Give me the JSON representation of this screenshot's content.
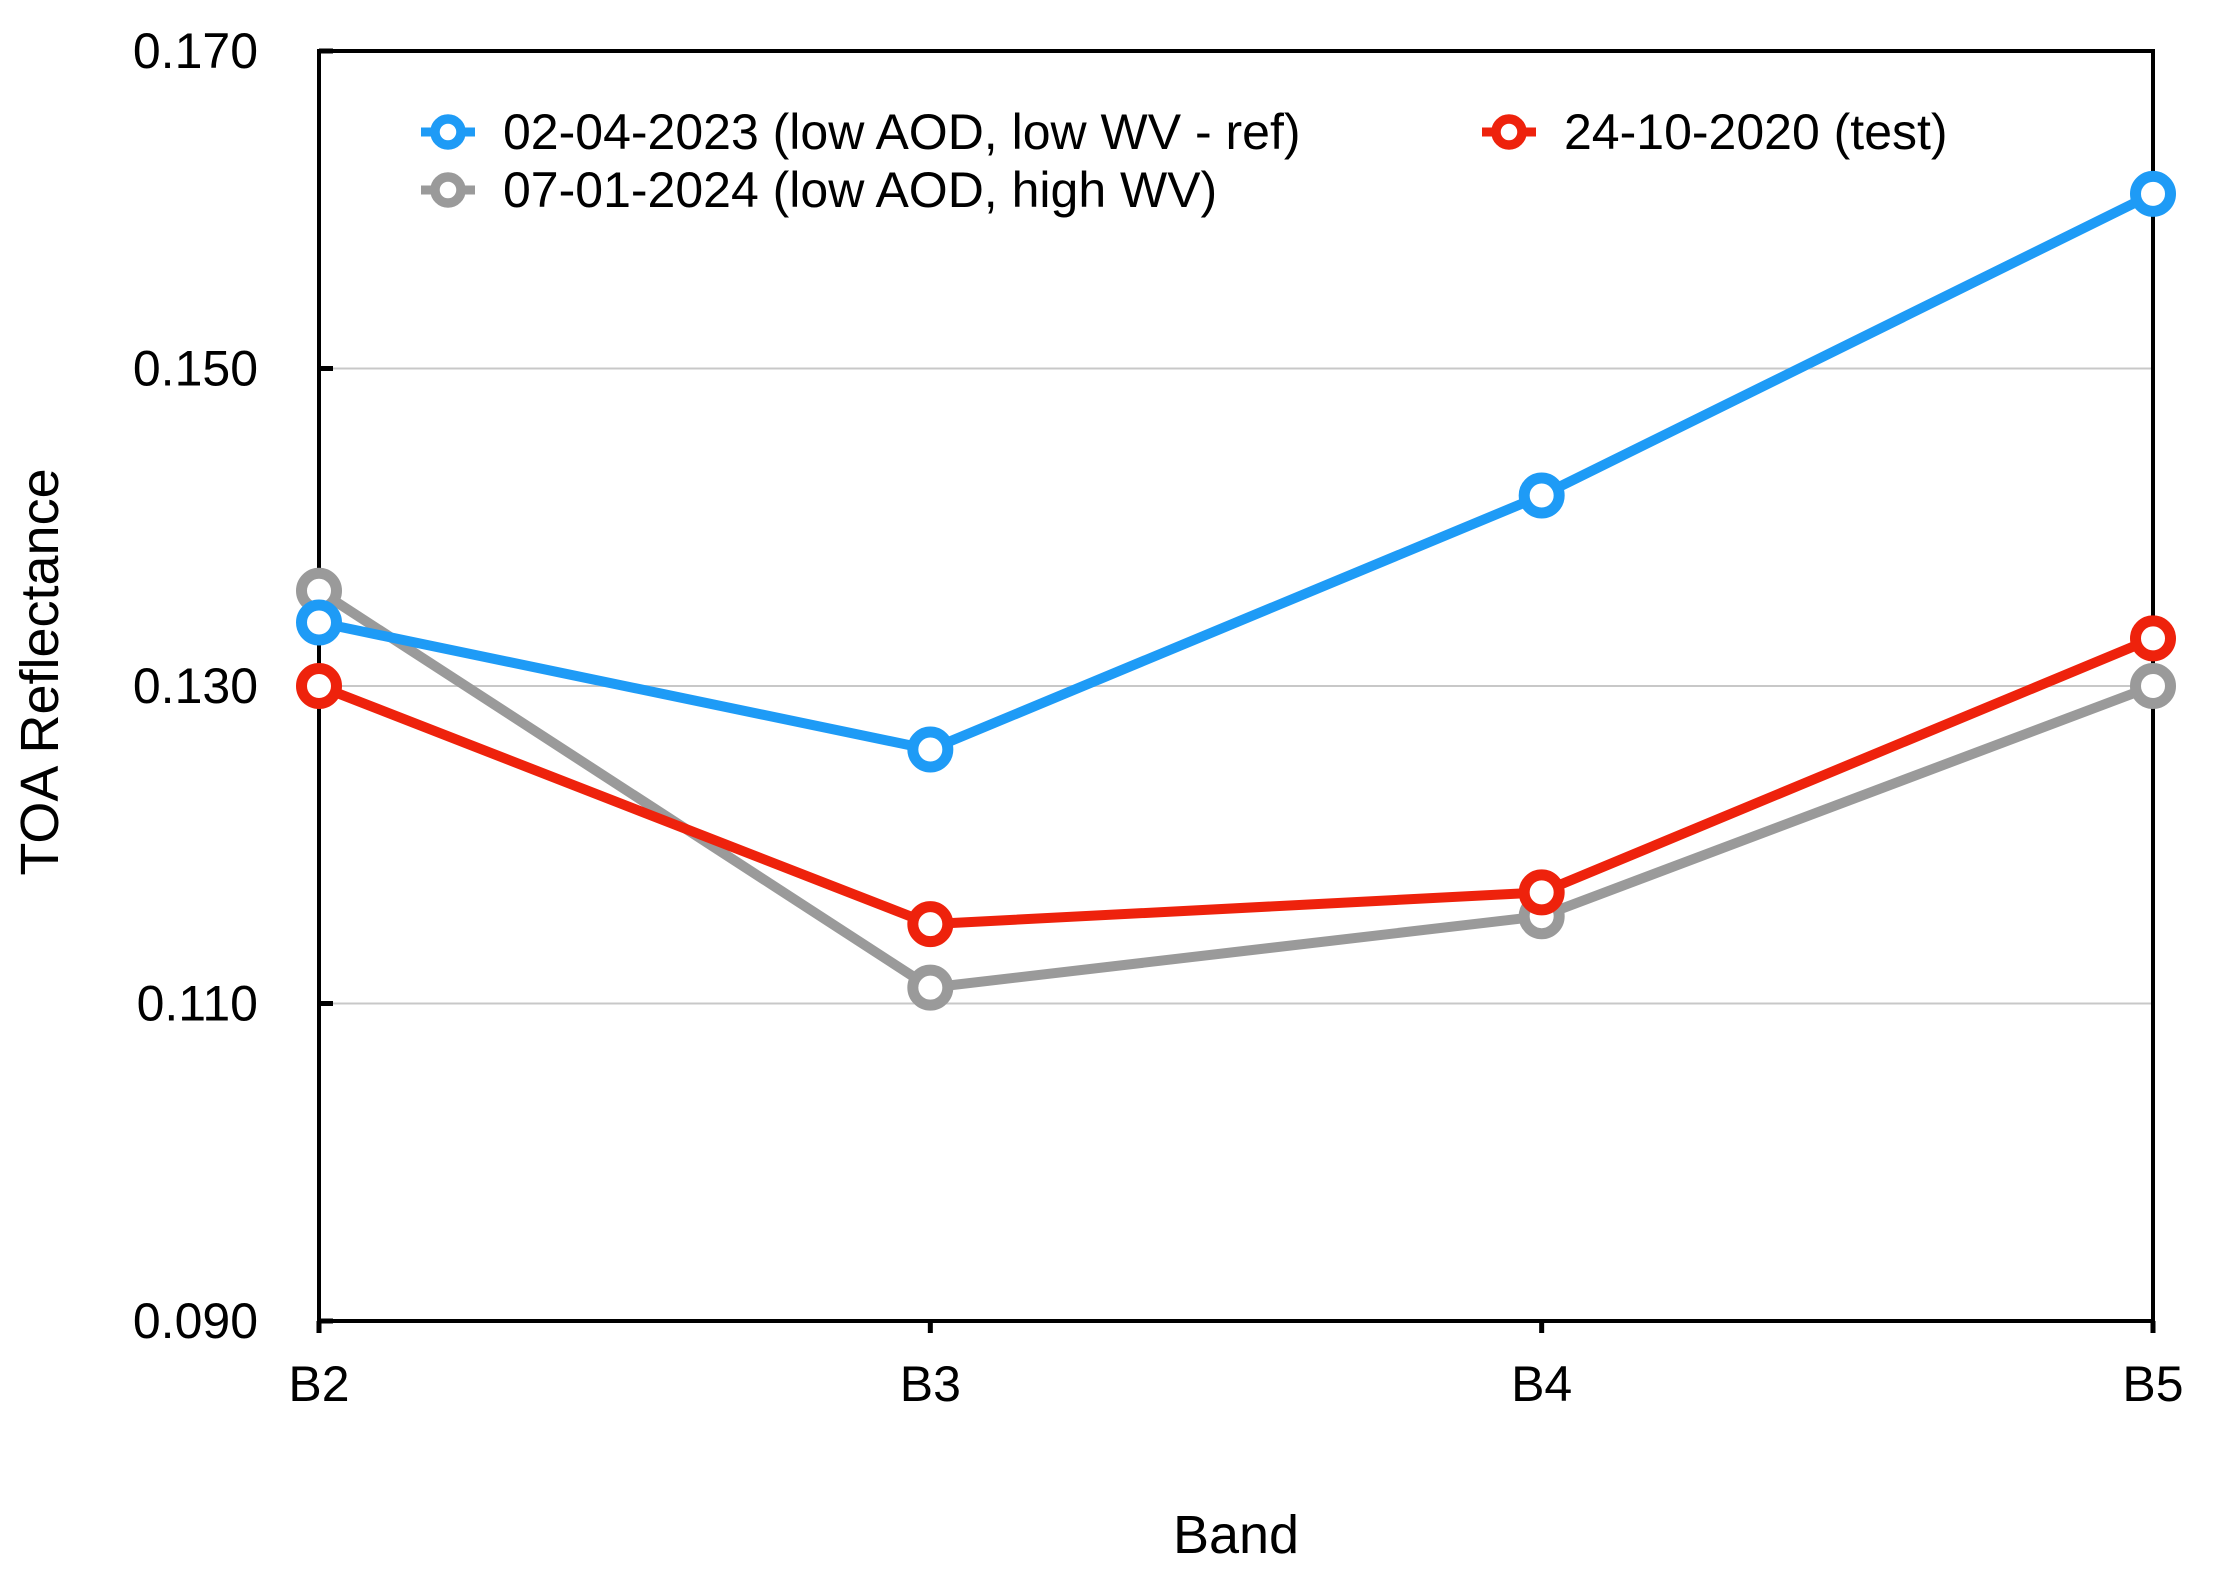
{
  "chart_data": {
    "type": "line",
    "title": "",
    "xlabel": "Band",
    "ylabel": "TOA Reflectance",
    "categories": [
      "B2",
      "B3",
      "B4",
      "B5"
    ],
    "ylim": [
      0.09,
      0.17
    ],
    "ytick_labels": [
      "0.090",
      "0.110",
      "0.130",
      "0.150",
      "0.170"
    ],
    "grid": "horizontal gridlines at inner y ticks only",
    "legend_position": "top inside plot area, two columns",
    "series": [
      {
        "name": "02-04-2023 (low AOD, low WV - ref)",
        "color": "#1E9BF6",
        "marker": "open-circle",
        "values": [
          0.134,
          0.126,
          0.142,
          0.161
        ]
      },
      {
        "name": "07-01-2024 (low AOD, high WV)",
        "color": "#9A9A9A",
        "marker": "open-circle",
        "values": [
          0.136,
          0.111,
          0.1155,
          0.13
        ]
      },
      {
        "name": "24-10-2020 (test)",
        "color": "#EE220C",
        "marker": "open-circle",
        "values": [
          0.13,
          0.115,
          0.117,
          0.133
        ]
      }
    ],
    "legend_columns": [
      [
        0,
        1
      ],
      [
        2
      ]
    ],
    "draw_order": [
      1,
      2,
      0
    ],
    "axis_color": "#000000",
    "gridline_color": "#C8C8C8",
    "background_color": "#FFFFFF"
  }
}
